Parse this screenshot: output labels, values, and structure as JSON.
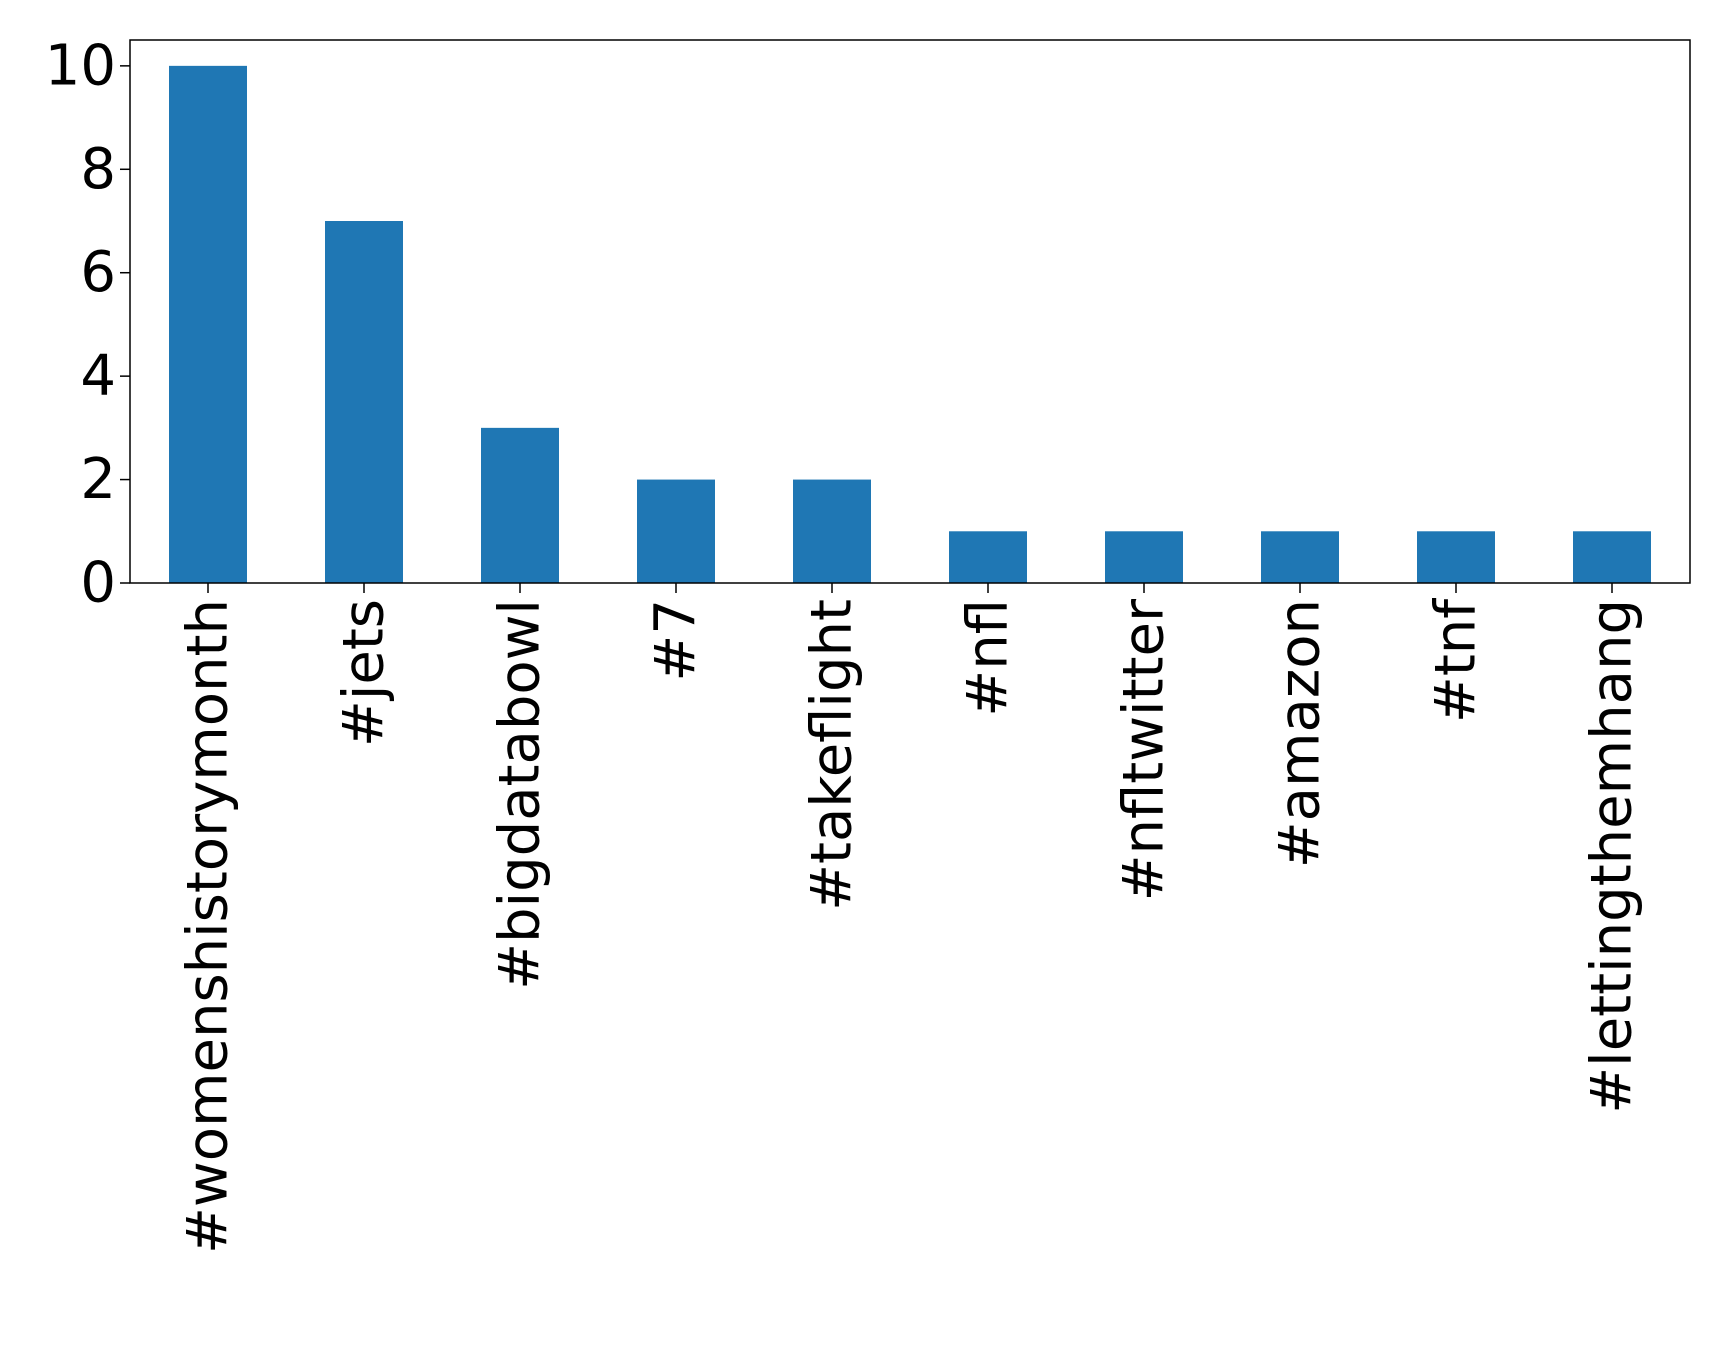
{
  "chart_data": {
    "type": "bar",
    "title": "",
    "xlabel": "",
    "ylabel": "",
    "categories": [
      "#womenshistorymonth",
      "#jets",
      "#bigdatabowl",
      "#7",
      "#takeflight",
      "#nfl",
      "#nfltwitter",
      "#amazon",
      "#tnf",
      "#lettingthemhang"
    ],
    "values": [
      10,
      7,
      3,
      2,
      2,
      1,
      1,
      1,
      1,
      1
    ],
    "ylim": [
      0,
      10.5
    ],
    "yticks": [
      0,
      2,
      4,
      6,
      8,
      10
    ],
    "bar_color": "#1f77b4",
    "grid": false,
    "legend": "none"
  }
}
